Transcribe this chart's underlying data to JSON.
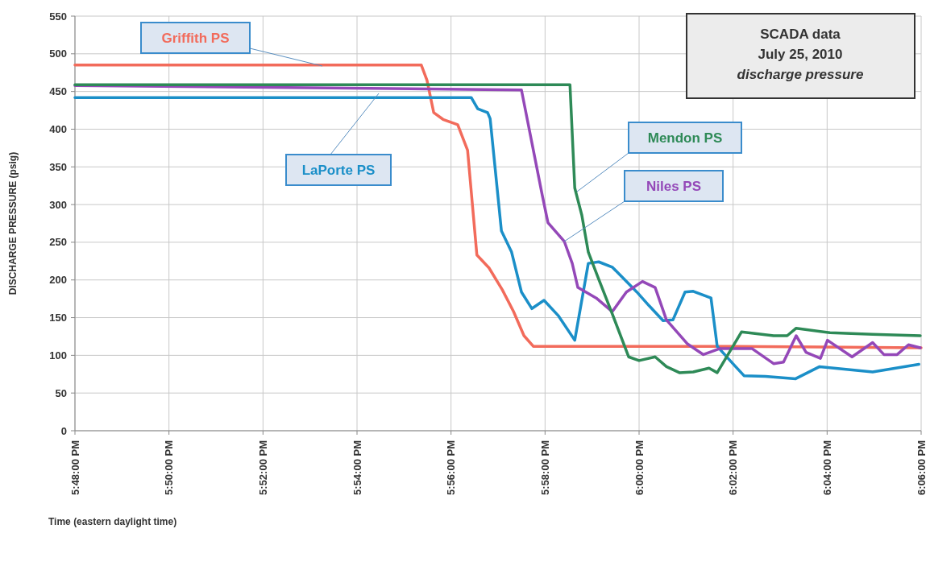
{
  "chart_data": {
    "type": "line",
    "title": "SCADA data",
    "subtitle": "July 25, 2010",
    "annotations": [
      "discharge pressure"
    ],
    "xlabel": "Time (eastern daylight  time)",
    "ylabel": "DISCHARGE PRESSURE  (psig)",
    "xlim": [
      17.8,
      18.1
    ],
    "ylim": [
      0,
      550
    ],
    "xticks": [
      {
        "value": 17.8,
        "label": "5:48:00 PM"
      },
      {
        "value": 17.833333,
        "label": "5:50:00 PM"
      },
      {
        "value": 17.866667,
        "label": "5:52:00 PM"
      },
      {
        "value": 17.9,
        "label": "5:54:00 PM"
      },
      {
        "value": 17.933333,
        "label": "5:56:00 PM"
      },
      {
        "value": 17.966667,
        "label": "5:58:00 PM"
      },
      {
        "value": 18.0,
        "label": "6:00:00 PM"
      },
      {
        "value": 18.033333,
        "label": "6:02:00 PM"
      },
      {
        "value": 18.066667,
        "label": "6:04:00 PM"
      },
      {
        "value": 18.1,
        "label": "6:06:00 PM"
      }
    ],
    "yticks": [
      0,
      50,
      100,
      150,
      200,
      250,
      300,
      350,
      400,
      450,
      500,
      550
    ],
    "grid": true,
    "marker": "none",
    "line_style": "solid",
    "series": [
      {
        "name": "Griffith PS",
        "color": "#f26b5b",
        "x": [
          17.8,
          17.9228,
          17.9248,
          17.9272,
          17.9305,
          17.9357,
          17.9392,
          17.9425,
          17.9468,
          17.9515,
          17.9555,
          17.9592,
          17.9625,
          18.0333,
          18.1
        ],
        "values": [
          485,
          485,
          465,
          422,
          413,
          406,
          372,
          233,
          216,
          187,
          158,
          126,
          112,
          112,
          110
        ]
      },
      {
        "name": "LaPorte PS",
        "color": "#1b8fc8",
        "x": [
          17.8,
          17.9405,
          17.9428,
          17.9463,
          17.9472,
          17.9512,
          17.9548,
          17.9583,
          17.962,
          17.9663,
          17.9715,
          17.9772,
          17.982,
          17.9857,
          17.9905,
          17.9955,
          17.9992,
          18.0035,
          18.0085,
          18.012,
          18.0163,
          18.0192,
          18.0255,
          18.0277,
          18.0335,
          18.0372,
          18.0448,
          18.0555,
          18.064,
          18.0828,
          18.0992
        ],
        "values": [
          442,
          442,
          427,
          422,
          414,
          265,
          237,
          184,
          162,
          173,
          152,
          120,
          222,
          224,
          217,
          198,
          184,
          166,
          146,
          147,
          184,
          185,
          176,
          112,
          88,
          73,
          72,
          69,
          85,
          78,
          88
        ]
      },
      {
        "name": "Niles PS",
        "color": "#9448b8",
        "x": [
          17.8,
          17.9583,
          17.9657,
          17.9677,
          17.9735,
          17.9763,
          17.9783,
          17.9848,
          17.9905,
          17.9955,
          18.0012,
          18.0057,
          18.0097,
          18.0172,
          18.0228,
          18.0287,
          18.04,
          18.0477,
          18.0512,
          18.0557,
          18.0592,
          18.0643,
          18.0668,
          18.0755,
          18.0828,
          18.0868,
          18.0915,
          18.0955,
          18.0997
        ],
        "values": [
          458,
          452,
          312,
          276,
          251,
          222,
          190,
          176,
          158,
          184,
          198,
          190,
          147,
          115,
          101,
          109,
          109,
          89,
          91,
          126,
          104,
          96,
          120,
          98,
          117,
          101,
          101,
          114,
          110
        ]
      },
      {
        "name": "Mendon PS",
        "color": "#2e8a57",
        "x": [
          17.8,
          17.9755,
          17.9772,
          17.9797,
          17.982,
          17.9857,
          17.9905,
          17.9963,
          18.0,
          18.0057,
          18.0097,
          18.0143,
          18.0192,
          18.0248,
          18.0277,
          18.0363,
          18.0477,
          18.0525,
          18.0557,
          18.0677,
          18.0828,
          18.0997
        ],
        "values": [
          459,
          459,
          322,
          286,
          237,
          201,
          155,
          98,
          93,
          98,
          85,
          77,
          78,
          83,
          77,
          131,
          126,
          126,
          136,
          130,
          128,
          126
        ]
      }
    ]
  }
}
